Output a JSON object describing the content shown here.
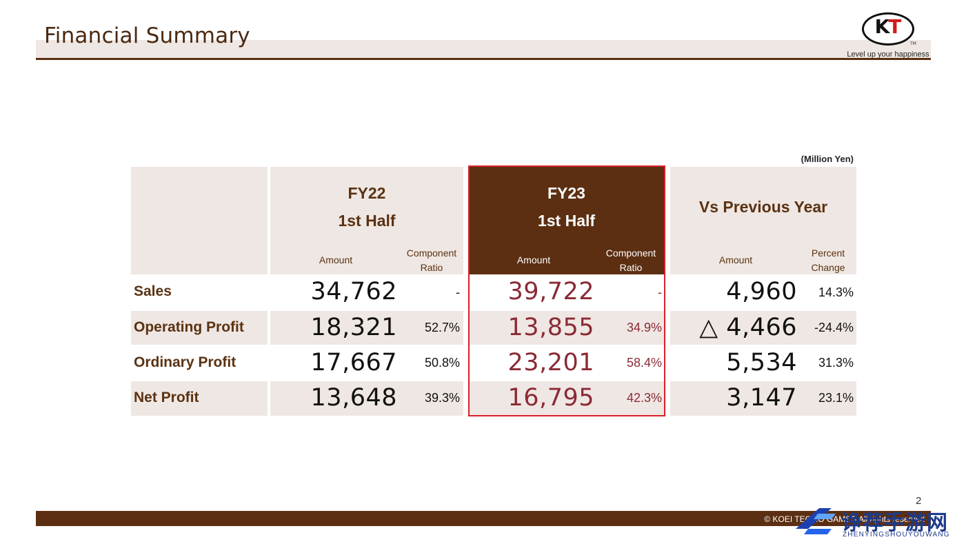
{
  "page_title": "Financial Summary",
  "logo": {
    "mark": "KT",
    "mark_k": "K",
    "mark_t": "T",
    "tm": "TM",
    "tagline": "Level up your happiness"
  },
  "unit_note": "(Million Yen)",
  "columns": {
    "fy22": {
      "title_line1": "FY22",
      "title_line2": "1st Half",
      "amount": "Amount",
      "ratio_line1": "Component",
      "ratio_line2": "Ratio"
    },
    "fy23": {
      "title_line1": "FY23",
      "title_line2": "1st Half",
      "amount": "Amount",
      "ratio_line1": "Component",
      "ratio_line2": "Ratio"
    },
    "vs": {
      "title": "Vs Previous Year",
      "amount": "Amount",
      "pct_line1": "Percent",
      "pct_line2": "Change"
    }
  },
  "rows": [
    {
      "label": "Sales",
      "fy22_amount": "34,762",
      "fy22_ratio": "-",
      "fy23_amount": "39,722",
      "fy23_ratio": "-",
      "vs_amount": "4,960",
      "vs_pct": "14.3%"
    },
    {
      "label": "Operating Profit",
      "fy22_amount": "18,321",
      "fy22_ratio": "52.7%",
      "fy23_amount": "13,855",
      "fy23_ratio": "34.9%",
      "vs_amount": "△ 4,466",
      "vs_pct": "-24.4%"
    },
    {
      "label": "Ordinary Profit",
      "fy22_amount": "17,667",
      "fy22_ratio": "50.8%",
      "fy23_amount": "23,201",
      "fy23_ratio": "58.4%",
      "vs_amount": "5,534",
      "vs_pct": "31.3%"
    },
    {
      "label": "Net Profit",
      "fy22_amount": "13,648",
      "fy22_ratio": "39.3%",
      "fy23_amount": "16,795",
      "fy23_ratio": "42.3%",
      "vs_amount": "3,147",
      "vs_pct": "23.1%"
    }
  ],
  "footer": {
    "copyright": "© KOEI TECMO GAMES All rights reserved",
    "page_number": "2"
  },
  "watermark": {
    "text": "诤荐手游网",
    "sub": "ZHENYINGSHOUYOUWANG"
  },
  "colors": {
    "brand_brown": "#5c2f12",
    "band": "#efe7e3",
    "highlight_red": "#d8202a",
    "fy23_value": "#8a2a35"
  }
}
